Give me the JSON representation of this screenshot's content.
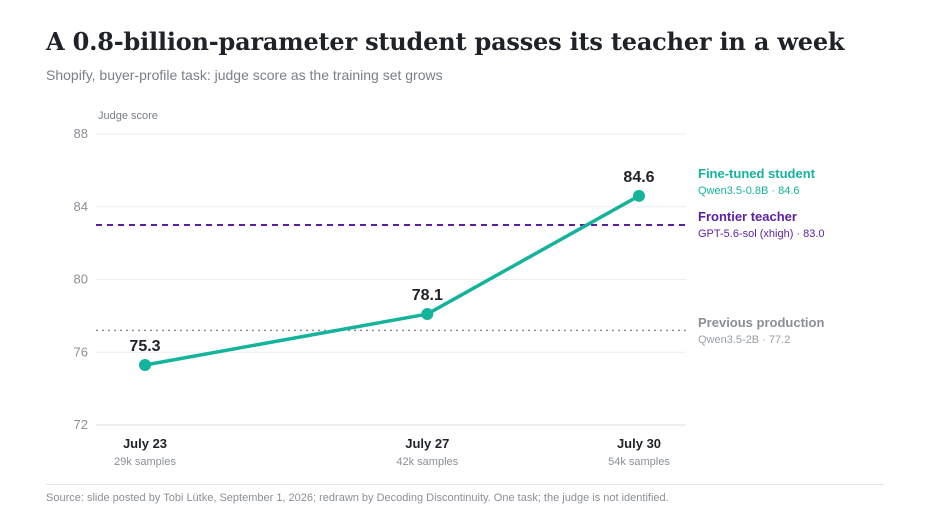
{
  "title": "A 0.8-billion-parameter student passes its teacher in a week",
  "subtitle": "Shopify, buyer-profile task: judge score as the training set grows",
  "source": "Source: slide posted by Tobi Lütke, September 1, 2026; redrawn by Decoding Discontinuity. One task; the judge is not identified.",
  "chart_data": {
    "type": "line",
    "ylabel": "Judge score",
    "ylim": [
      72,
      88
    ],
    "yticks": [
      72,
      76,
      80,
      84,
      88
    ],
    "grid": true,
    "x": [
      "July 23",
      "July 27",
      "July 30"
    ],
    "x_sub": [
      "29k samples",
      "42k samples",
      "54k samples"
    ],
    "x_days": [
      23,
      27,
      30
    ],
    "series": [
      {
        "values": [
          75.3,
          78.1,
          84.6
        ],
        "data_labels": [
          "75.3",
          "78.1",
          "84.6"
        ],
        "color": "#13b39c"
      }
    ],
    "reference_lines": [
      {
        "value": 83.0,
        "style": "dashed",
        "color": "#5b1fa3",
        "label": "Frontier teacher",
        "sublabel": "GPT-5.6-sol (xhigh) · 83.0"
      },
      {
        "value": 77.2,
        "style": "dotted",
        "color": "#8a8f96",
        "label": "Previous production",
        "sublabel": "Qwen3.5-2B · 77.2"
      }
    ],
    "legend": [
      {
        "label": "Fine-tuned student",
        "sublabel": "Qwen3.5-0.8B · 84.6",
        "color": "#13b39c"
      },
      {
        "label": "Frontier teacher",
        "sublabel": "GPT-5.6-sol (xhigh) · 83.0",
        "color": "#5b1fa3"
      },
      {
        "label": "Previous production",
        "sublabel": "Qwen3.5-2B · 77.2",
        "color": "#8a8f96"
      }
    ],
    "legend_placement": "right"
  }
}
